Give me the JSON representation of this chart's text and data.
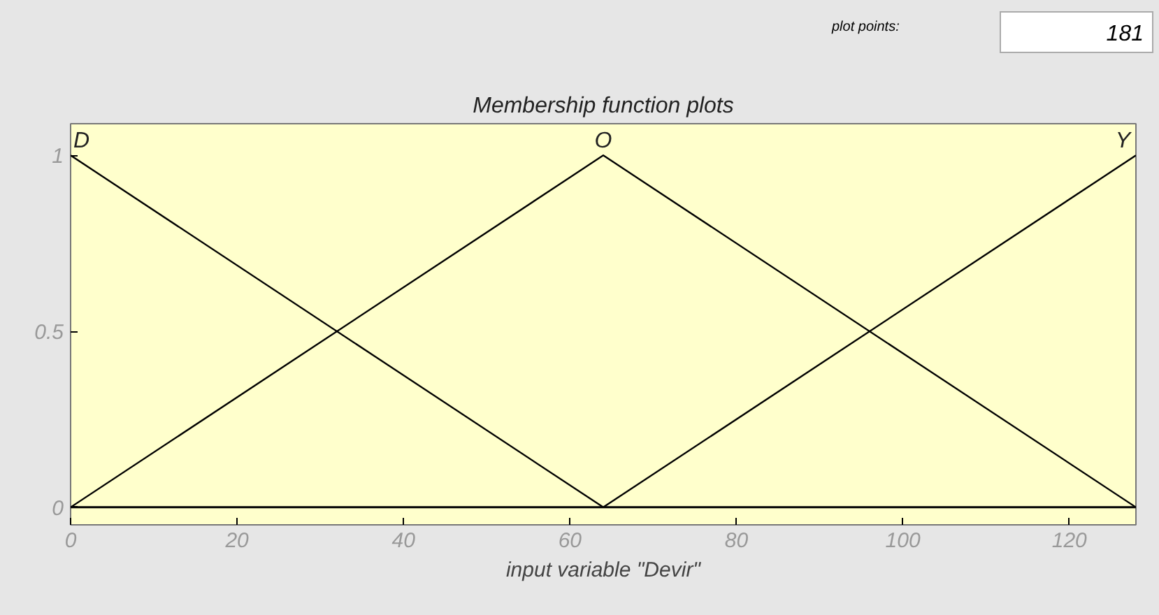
{
  "chart_data": {
    "type": "line",
    "title": "Membership function plots",
    "xlabel": "input variable \"Devir\"",
    "x": [
      0,
      64,
      128
    ],
    "series": [
      {
        "name": "D",
        "color": "#000000",
        "values": [
          1,
          0,
          null
        ]
      },
      {
        "name": "O",
        "color": "#000000",
        "values": [
          0,
          1,
          0
        ]
      },
      {
        "name": "Y",
        "color": "#000000",
        "values": [
          null,
          0,
          1
        ]
      }
    ],
    "xlim": [
      0,
      128
    ],
    "ylim": [
      -0.05,
      1.09
    ],
    "xticks": [
      0,
      20,
      40,
      60,
      80,
      100,
      120
    ],
    "yticks": [
      0,
      0.5,
      1
    ],
    "ref_lines": [
      {
        "axis": "y",
        "value": 0,
        "color": "#000000"
      }
    ],
    "annotations": [
      "plot points:",
      "181"
    ],
    "grid": false,
    "marker": "none",
    "line_style": "solid"
  }
}
